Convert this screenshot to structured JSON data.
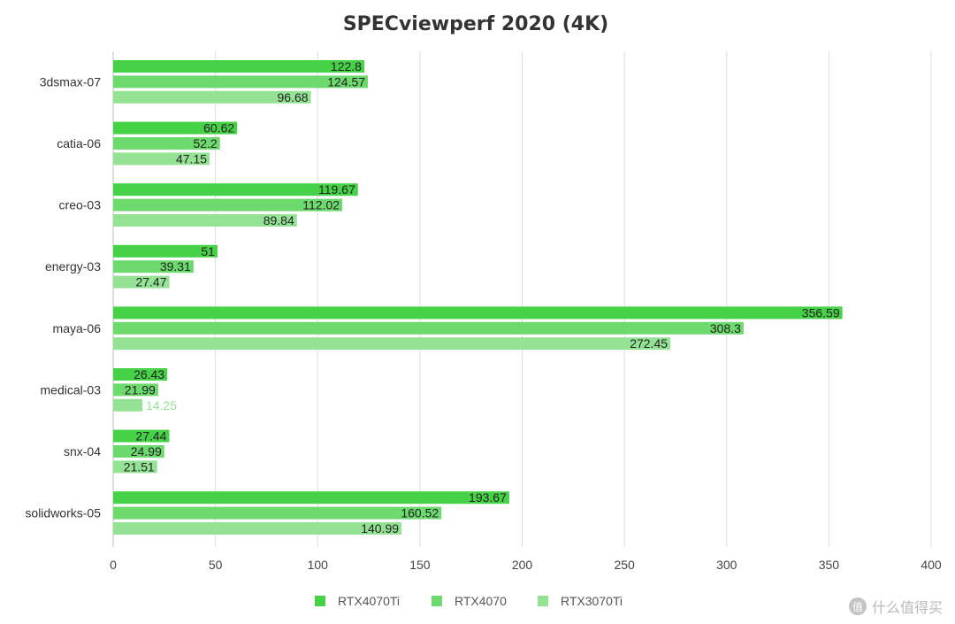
{
  "chart_data": {
    "type": "bar",
    "orientation": "horizontal",
    "title": "SPECviewperf 2020 (4K)",
    "categories": [
      "3dsmax-07",
      "catia-06",
      "creo-03",
      "energy-03",
      "maya-06",
      "medical-03",
      "snx-04",
      "solidworks-05"
    ],
    "series": [
      {
        "name": "RTX4070Ti",
        "color": "#46d246",
        "values": [
          122.8,
          60.62,
          119.67,
          51,
          356.59,
          26.43,
          27.44,
          193.67
        ]
      },
      {
        "name": "RTX4070",
        "color": "#6cda6c",
        "values": [
          124.57,
          52.2,
          112.02,
          39.31,
          308.3,
          21.99,
          24.99,
          160.52
        ]
      },
      {
        "name": "RTX3070Ti",
        "color": "#94e394",
        "values": [
          96.68,
          47.15,
          89.84,
          27.47,
          272.45,
          14.25,
          21.51,
          140.99
        ]
      }
    ],
    "xlim": [
      0,
      400
    ],
    "xticks": [
      0,
      50,
      100,
      150,
      200,
      250,
      300,
      350,
      400
    ],
    "grid": true,
    "legend": "bottom"
  },
  "watermark": {
    "icon": "值",
    "text": "什么值得买"
  }
}
